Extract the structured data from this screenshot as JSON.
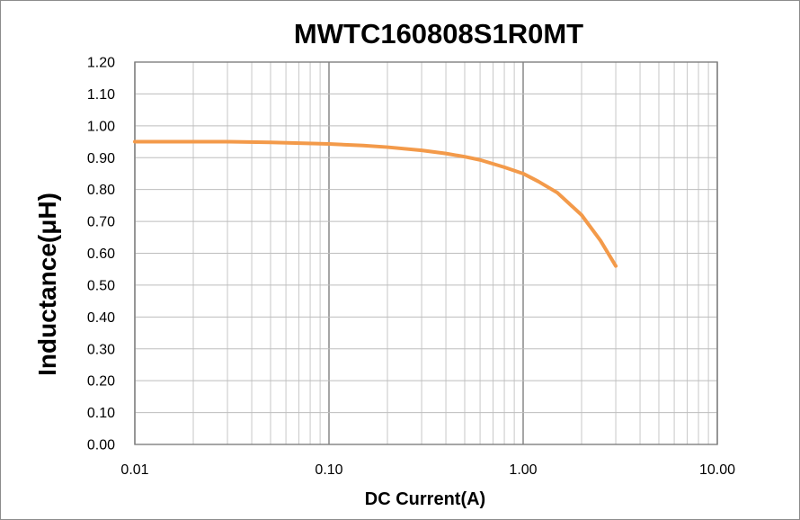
{
  "chart_data": {
    "type": "line",
    "title": "MWTC160808S1R0MT",
    "xlabel": "DC  Current(A)",
    "ylabel": "Inductance(μH)",
    "x_scale": "log",
    "xlim": [
      0.01,
      10
    ],
    "ylim": [
      0,
      1.2
    ],
    "x_ticks": [
      "0.01",
      "0.10",
      "1.00",
      "10.00"
    ],
    "y_ticks": [
      "0.00",
      "0.10",
      "0.20",
      "0.30",
      "0.40",
      "0.50",
      "0.60",
      "0.70",
      "0.80",
      "0.90",
      "1.00",
      "1.10",
      "1.20"
    ],
    "grid": true,
    "legend": "none",
    "series": [
      {
        "color": "#f39a4a",
        "x": [
          0.01,
          0.02,
          0.03,
          0.05,
          0.1,
          0.15,
          0.2,
          0.3,
          0.4,
          0.5,
          0.6,
          0.8,
          1.0,
          1.2,
          1.5,
          2.0,
          2.5,
          3.0
        ],
        "y": [
          0.95,
          0.95,
          0.95,
          0.948,
          0.943,
          0.938,
          0.933,
          0.923,
          0.913,
          0.903,
          0.893,
          0.87,
          0.85,
          0.825,
          0.79,
          0.72,
          0.64,
          0.56
        ]
      }
    ]
  }
}
